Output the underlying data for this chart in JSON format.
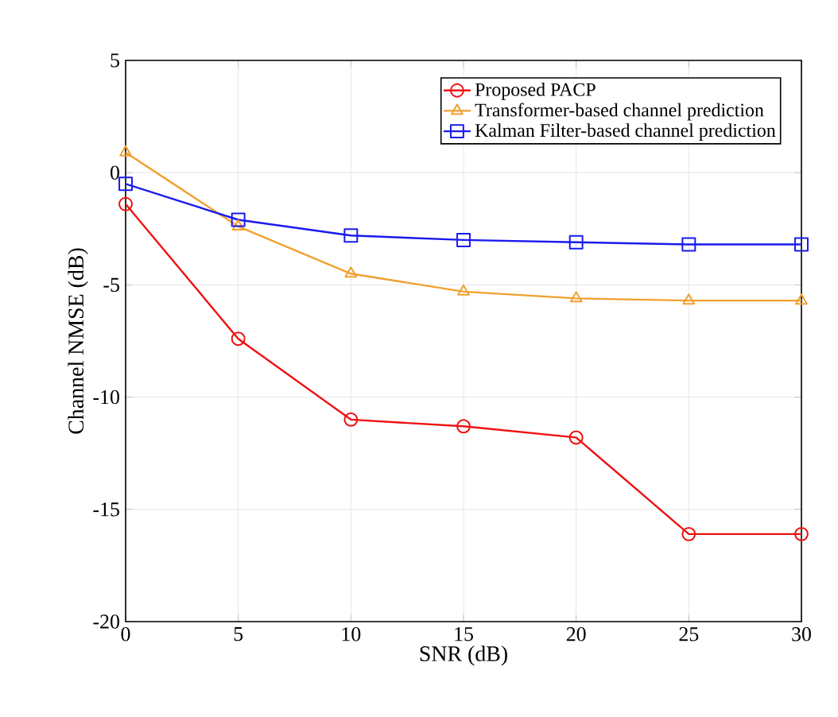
{
  "chart_data": {
    "type": "line",
    "xlabel": "SNR (dB)",
    "ylabel": "Channel NMSE (dB)",
    "x": [
      0,
      5,
      10,
      15,
      20,
      25,
      30
    ],
    "series": [
      {
        "name": "Proposed PACP",
        "color": "#ee1111",
        "marker": "circle",
        "values": [
          -1.4,
          -7.4,
          -11.0,
          -11.3,
          -11.8,
          -16.1,
          -16.1
        ]
      },
      {
        "name": "Transformer-based channel prediction",
        "color": "#f0a030",
        "marker": "triangle",
        "values": [
          0.9,
          -2.4,
          -4.5,
          -5.3,
          -5.6,
          -5.7,
          -5.7
        ]
      },
      {
        "name": "Kalman Filter-based channel prediction",
        "color": "#1a1aee",
        "marker": "square",
        "values": [
          -0.5,
          -2.1,
          -2.8,
          -3.0,
          -3.1,
          -3.2,
          -3.2
        ]
      }
    ],
    "xlim": [
      0,
      30
    ],
    "xticks": [
      0,
      5,
      10,
      15,
      20,
      25,
      30
    ],
    "ylim": [
      -20,
      5
    ],
    "yticks": [
      -20,
      -15,
      -10,
      -5,
      0,
      5
    ],
    "grid": true,
    "legend": "top right"
  }
}
